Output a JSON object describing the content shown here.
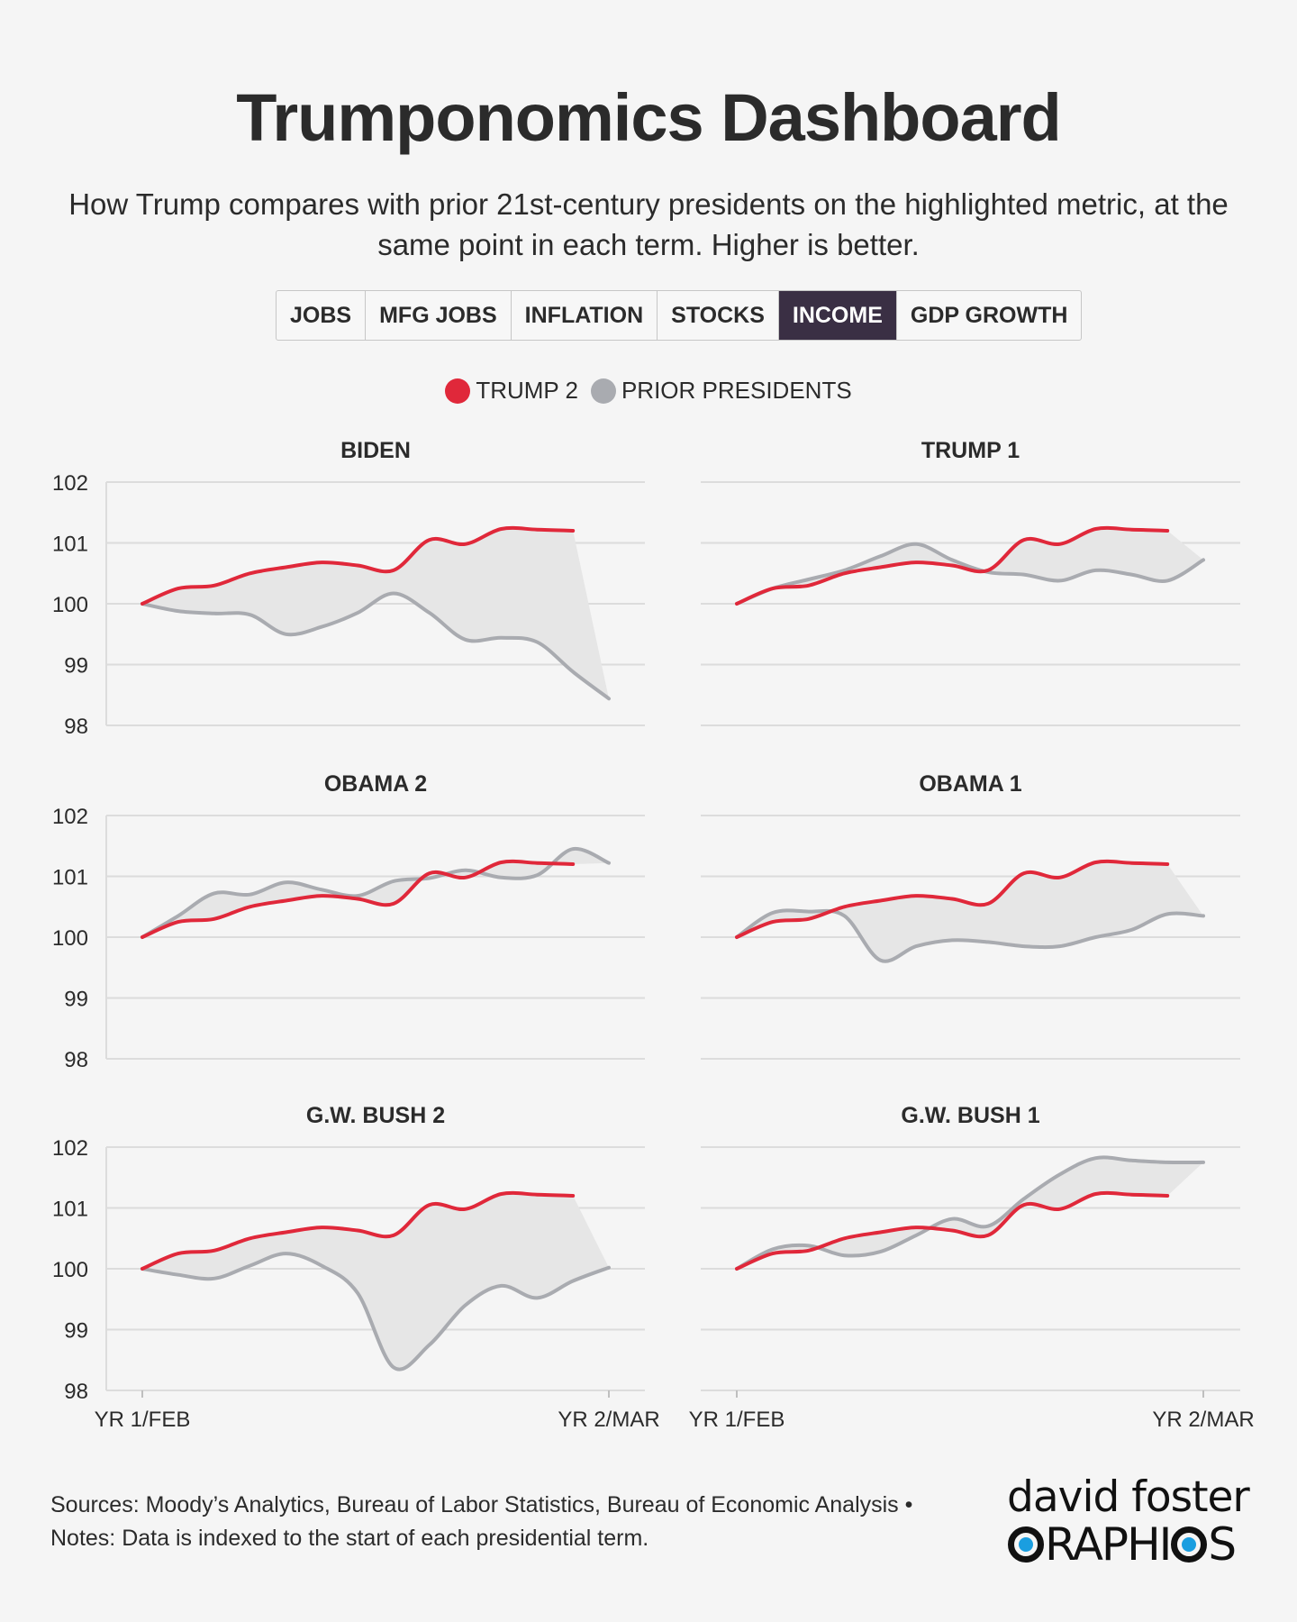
{
  "header": {
    "title": "Trumponomics Dashboard",
    "subtitle": "How Trump compares with prior 21st-century presidents on the highlighted metric, at the same point in each term. Higher is better."
  },
  "tabs": [
    {
      "label": "JOBS",
      "active": false
    },
    {
      "label": "MFG JOBS",
      "active": false
    },
    {
      "label": "INFLATION",
      "active": false
    },
    {
      "label": "STOCKS",
      "active": false
    },
    {
      "label": "INCOME",
      "active": true
    },
    {
      "label": "GDP GROWTH",
      "active": false
    }
  ],
  "legend": {
    "trump": {
      "label": "TRUMP 2",
      "color": "#e0283a"
    },
    "prior": {
      "label": "PRIOR PRESIDENTS",
      "color": "#a9abb0"
    }
  },
  "chart_data": [
    {
      "type": "line",
      "title": "BIDEN",
      "ylim": [
        98,
        102
      ],
      "yticks": [
        98,
        99,
        100,
        101,
        102
      ],
      "xtick_labels": [
        "YR 1/FEB",
        "YR 2/MAR"
      ],
      "x_range": [
        0,
        13
      ],
      "series": [
        {
          "name": "TRUMP 2",
          "x": [
            0,
            1,
            2,
            3,
            4,
            5,
            6,
            7,
            8,
            9,
            10,
            11,
            12
          ],
          "values": [
            100,
            100.25,
            100.3,
            100.5,
            100.6,
            100.68,
            100.63,
            100.55,
            101.05,
            100.98,
            101.23,
            101.22,
            101.2
          ]
        },
        {
          "name": "PRIOR PRESIDENTS",
          "x": [
            0,
            1,
            2,
            3,
            4,
            5,
            6,
            7,
            8,
            9,
            10,
            11,
            12,
            13
          ],
          "values": [
            100,
            99.88,
            99.84,
            99.82,
            99.5,
            99.62,
            99.85,
            100.17,
            99.85,
            99.41,
            99.44,
            99.37,
            98.88,
            98.44
          ]
        }
      ]
    },
    {
      "type": "line",
      "title": "TRUMP 1",
      "ylim": [
        98,
        102
      ],
      "yticks": [
        98,
        99,
        100,
        101,
        102
      ],
      "xtick_labels": [
        "YR 1/FEB",
        "YR 2/MAR"
      ],
      "x_range": [
        0,
        13
      ],
      "series": [
        {
          "name": "TRUMP 2",
          "x": [
            0,
            1,
            2,
            3,
            4,
            5,
            6,
            7,
            8,
            9,
            10,
            11,
            12
          ],
          "values": [
            100,
            100.25,
            100.3,
            100.5,
            100.6,
            100.68,
            100.63,
            100.55,
            101.05,
            100.98,
            101.23,
            101.22,
            101.2
          ]
        },
        {
          "name": "PRIOR PRESIDENTS",
          "x": [
            0,
            1,
            2,
            3,
            4,
            5,
            6,
            7,
            8,
            9,
            10,
            11,
            12,
            13
          ],
          "values": [
            100,
            100.25,
            100.4,
            100.55,
            100.78,
            100.98,
            100.72,
            100.52,
            100.48,
            100.38,
            100.55,
            100.48,
            100.38,
            100.72
          ]
        }
      ]
    },
    {
      "type": "line",
      "title": "OBAMA 2",
      "ylim": [
        98,
        102
      ],
      "yticks": [
        98,
        99,
        100,
        101,
        102
      ],
      "xtick_labels": [
        "YR 1/FEB",
        "YR 2/MAR"
      ],
      "x_range": [
        0,
        13
      ],
      "series": [
        {
          "name": "TRUMP 2",
          "x": [
            0,
            1,
            2,
            3,
            4,
            5,
            6,
            7,
            8,
            9,
            10,
            11,
            12
          ],
          "values": [
            100,
            100.25,
            100.3,
            100.5,
            100.6,
            100.68,
            100.63,
            100.55,
            101.05,
            100.98,
            101.23,
            101.22,
            101.2
          ]
        },
        {
          "name": "PRIOR PRESIDENTS",
          "x": [
            0,
            1,
            2,
            3,
            4,
            5,
            6,
            7,
            8,
            9,
            10,
            11,
            12,
            13
          ],
          "values": [
            100,
            100.35,
            100.72,
            100.7,
            100.9,
            100.78,
            100.68,
            100.92,
            100.97,
            101.1,
            100.98,
            101.02,
            101.45,
            101.22
          ]
        }
      ]
    },
    {
      "type": "line",
      "title": "OBAMA 1",
      "ylim": [
        98,
        102
      ],
      "yticks": [
        98,
        99,
        100,
        101,
        102
      ],
      "xtick_labels": [
        "YR 1/FEB",
        "YR 2/MAR"
      ],
      "x_range": [
        0,
        13
      ],
      "series": [
        {
          "name": "TRUMP 2",
          "x": [
            0,
            1,
            2,
            3,
            4,
            5,
            6,
            7,
            8,
            9,
            10,
            11,
            12
          ],
          "values": [
            100,
            100.25,
            100.3,
            100.5,
            100.6,
            100.68,
            100.63,
            100.55,
            101.05,
            100.98,
            101.23,
            101.22,
            101.2
          ]
        },
        {
          "name": "PRIOR PRESIDENTS",
          "x": [
            0,
            1,
            2,
            3,
            4,
            5,
            6,
            7,
            8,
            9,
            10,
            11,
            12,
            13
          ],
          "values": [
            100,
            100.4,
            100.42,
            100.35,
            99.62,
            99.85,
            99.95,
            99.92,
            99.85,
            99.85,
            100,
            100.12,
            100.38,
            100.35
          ]
        }
      ]
    },
    {
      "type": "line",
      "title": "G.W. BUSH 2",
      "ylim": [
        98,
        102
      ],
      "yticks": [
        98,
        99,
        100,
        101,
        102
      ],
      "xtick_labels": [
        "YR 1/FEB",
        "YR 2/MAR"
      ],
      "x_range": [
        0,
        13
      ],
      "series": [
        {
          "name": "TRUMP 2",
          "x": [
            0,
            1,
            2,
            3,
            4,
            5,
            6,
            7,
            8,
            9,
            10,
            11,
            12
          ],
          "values": [
            100,
            100.25,
            100.3,
            100.5,
            100.6,
            100.68,
            100.63,
            100.55,
            101.05,
            100.98,
            101.23,
            101.22,
            101.2
          ]
        },
        {
          "name": "PRIOR PRESIDENTS",
          "x": [
            0,
            1,
            2,
            3,
            4,
            5,
            6,
            7,
            8,
            9,
            10,
            11,
            12,
            13
          ],
          "values": [
            100,
            99.9,
            99.84,
            100.05,
            100.25,
            100.05,
            99.6,
            98.38,
            98.75,
            99.4,
            99.72,
            99.52,
            99.8,
            100.02
          ]
        }
      ]
    },
    {
      "type": "line",
      "title": "G.W. BUSH 1",
      "ylim": [
        98,
        102
      ],
      "yticks": [
        98,
        99,
        100,
        101,
        102
      ],
      "xtick_labels": [
        "YR 1/FEB",
        "YR 2/MAR"
      ],
      "x_range": [
        0,
        13
      ],
      "series": [
        {
          "name": "TRUMP 2",
          "x": [
            0,
            1,
            2,
            3,
            4,
            5,
            6,
            7,
            8,
            9,
            10,
            11,
            12
          ],
          "values": [
            100,
            100.25,
            100.3,
            100.5,
            100.6,
            100.68,
            100.63,
            100.55,
            101.05,
            100.98,
            101.23,
            101.22,
            101.2
          ]
        },
        {
          "name": "PRIOR PRESIDENTS",
          "x": [
            0,
            1,
            2,
            3,
            4,
            5,
            6,
            7,
            8,
            9,
            10,
            11,
            12,
            13
          ],
          "values": [
            100,
            100.32,
            100.38,
            100.22,
            100.28,
            100.55,
            100.82,
            100.7,
            101.15,
            101.55,
            101.82,
            101.78,
            101.75,
            101.75
          ]
        }
      ]
    }
  ],
  "footer": {
    "sources": "Sources: Moody’s Analytics, Bureau of Labor Statistics, Bureau of Economic Analysis •",
    "notes": "Notes: Data is indexed to the start of each presidential term."
  },
  "logo": {
    "line1": "david foster",
    "line2_a": "G",
    "line2_b": "RAPHI",
    "line2_c": "S"
  }
}
